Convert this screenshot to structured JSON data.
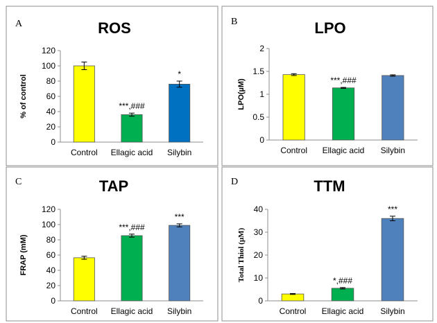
{
  "chart_data": [
    {
      "panel": "A",
      "type": "bar",
      "title": "ROS",
      "xlabel": "",
      "ylabel": "% of control",
      "ylim": [
        0,
        120
      ],
      "yticks": [
        0,
        20,
        40,
        60,
        80,
        100,
        120
      ],
      "categories": [
        "Control",
        "Ellagic acid",
        "Silybin"
      ],
      "values": [
        100,
        36,
        76
      ],
      "errors": [
        5,
        2,
        4
      ],
      "annotations": [
        "",
        "***,###",
        "*"
      ],
      "colors": [
        "#ffff00",
        "#00b050",
        "#0070c0"
      ],
      "grid": false,
      "legend": "none"
    },
    {
      "panel": "B",
      "type": "bar",
      "title": "LPO",
      "xlabel": "",
      "ylabel": "LPO(µM)",
      "ylim": [
        0,
        2
      ],
      "yticks": [
        0,
        0.5,
        1,
        1.5,
        2
      ],
      "categories": [
        "Control",
        "Ellagic acid",
        "Silybin"
      ],
      "values": [
        1.43,
        1.14,
        1.41
      ],
      "errors": [
        0.02,
        0.01,
        0.015
      ],
      "annotations": [
        "",
        "***,###",
        ""
      ],
      "colors": [
        "#ffff00",
        "#00b050",
        "#4f81bd"
      ],
      "grid": false,
      "legend": "none"
    },
    {
      "panel": "C",
      "type": "bar",
      "title": "TAP",
      "xlabel": "",
      "ylabel": "FRAP (mM)",
      "ylim": [
        0,
        120
      ],
      "yticks": [
        0,
        20,
        40,
        60,
        80,
        100,
        120
      ],
      "categories": [
        "Control",
        "Ellagic acid",
        "Silybin"
      ],
      "values": [
        56.5,
        85.5,
        99
      ],
      "errors": [
        2,
        2,
        2
      ],
      "annotations": [
        "",
        "***,###",
        "***"
      ],
      "colors": [
        "#ffff00",
        "#00b050",
        "#4f81bd"
      ],
      "grid": false,
      "legend": "none"
    },
    {
      "panel": "D",
      "type": "bar",
      "title": "TTM",
      "xlabel": "",
      "ylabel": "Total Thiol (µM)",
      "ylim": [
        0,
        40
      ],
      "yticks": [
        0,
        10,
        20,
        30,
        40
      ],
      "categories": [
        "Control",
        "Ellagic acid",
        "Silybin"
      ],
      "values": [
        3,
        5.5,
        36
      ],
      "errors": [
        0.2,
        0.3,
        1
      ],
      "annotations": [
        "",
        "*,###",
        "***"
      ],
      "colors": [
        "#ffff00",
        "#00b050",
        "#4f81bd"
      ],
      "grid": false,
      "legend": "none"
    }
  ]
}
